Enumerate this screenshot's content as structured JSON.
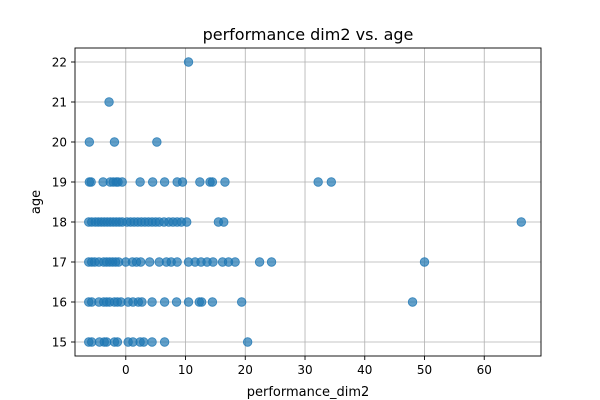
{
  "chart_data": {
    "type": "scatter",
    "title": "performance dim2 vs. age",
    "xlabel": "performance_dim2",
    "ylabel": "age",
    "xlim": [
      -8.5,
      69.5
    ],
    "ylim": [
      14.65,
      22.35
    ],
    "xticks": [
      0,
      10,
      20,
      30,
      40,
      50,
      60
    ],
    "yticks": [
      15,
      16,
      17,
      18,
      19,
      20,
      21,
      22
    ],
    "grid": true,
    "marker_color": "#1f77b4",
    "series": [
      {
        "points": [
          [
            10.5,
            22
          ],
          [
            -2.8,
            21
          ],
          [
            -6.1,
            20
          ],
          [
            -1.9,
            20
          ],
          [
            5.2,
            20
          ],
          [
            -6.1,
            19
          ],
          [
            -5.8,
            19
          ],
          [
            -3.8,
            19
          ],
          [
            -2.6,
            19
          ],
          [
            -2.1,
            19
          ],
          [
            -1.6,
            19
          ],
          [
            -1.3,
            19
          ],
          [
            -0.6,
            19
          ],
          [
            2.4,
            19
          ],
          [
            4.5,
            19
          ],
          [
            6.5,
            19
          ],
          [
            8.6,
            19
          ],
          [
            9.5,
            19
          ],
          [
            12.4,
            19
          ],
          [
            14.1,
            19
          ],
          [
            14.5,
            19
          ],
          [
            16.6,
            19
          ],
          [
            32.2,
            19
          ],
          [
            34.4,
            19
          ],
          [
            -6.2,
            18
          ],
          [
            -5.7,
            18
          ],
          [
            -5.1,
            18
          ],
          [
            -4.6,
            18
          ],
          [
            -4.1,
            18
          ],
          [
            -3.6,
            18
          ],
          [
            -3.1,
            18
          ],
          [
            -2.6,
            18
          ],
          [
            -2.1,
            18
          ],
          [
            -1.6,
            18
          ],
          [
            -1.1,
            18
          ],
          [
            -0.6,
            18
          ],
          [
            0.2,
            18
          ],
          [
            0.8,
            18
          ],
          [
            1.4,
            18
          ],
          [
            2.0,
            18
          ],
          [
            2.6,
            18
          ],
          [
            3.2,
            18
          ],
          [
            3.8,
            18
          ],
          [
            4.4,
            18
          ],
          [
            5.0,
            18
          ],
          [
            5.6,
            18
          ],
          [
            6.4,
            18
          ],
          [
            7.2,
            18
          ],
          [
            7.9,
            18
          ],
          [
            8.6,
            18
          ],
          [
            9.3,
            18
          ],
          [
            10.2,
            18
          ],
          [
            15.5,
            18
          ],
          [
            16.4,
            18
          ],
          [
            66.2,
            18
          ],
          [
            -6.2,
            17
          ],
          [
            -5.7,
            17
          ],
          [
            -5.2,
            17
          ],
          [
            -4.5,
            17
          ],
          [
            -3.7,
            17
          ],
          [
            -3.2,
            17
          ],
          [
            -2.7,
            17
          ],
          [
            -2.2,
            17
          ],
          [
            -1.7,
            17
          ],
          [
            -1.2,
            17
          ],
          [
            0.0,
            17
          ],
          [
            1.1,
            17
          ],
          [
            1.8,
            17
          ],
          [
            2.5,
            17
          ],
          [
            4.0,
            17
          ],
          [
            5.6,
            17
          ],
          [
            6.8,
            17
          ],
          [
            7.6,
            17
          ],
          [
            8.6,
            17
          ],
          [
            10.5,
            17
          ],
          [
            11.6,
            17
          ],
          [
            12.6,
            17
          ],
          [
            13.6,
            17
          ],
          [
            14.6,
            17
          ],
          [
            16.2,
            17
          ],
          [
            17.2,
            17
          ],
          [
            18.3,
            17
          ],
          [
            22.4,
            17
          ],
          [
            24.4,
            17
          ],
          [
            50.0,
            17
          ],
          [
            -6.2,
            16
          ],
          [
            -5.7,
            16
          ],
          [
            -4.5,
            16
          ],
          [
            -3.7,
            16
          ],
          [
            -3.2,
            16
          ],
          [
            -2.7,
            16
          ],
          [
            -1.9,
            16
          ],
          [
            -1.4,
            16
          ],
          [
            -0.8,
            16
          ],
          [
            0.4,
            16
          ],
          [
            1.2,
            16
          ],
          [
            2.1,
            16
          ],
          [
            2.7,
            16
          ],
          [
            4.4,
            16
          ],
          [
            6.5,
            16
          ],
          [
            8.5,
            16
          ],
          [
            10.5,
            16
          ],
          [
            12.3,
            16
          ],
          [
            12.7,
            16
          ],
          [
            14.5,
            16
          ],
          [
            19.4,
            16
          ],
          [
            48.0,
            16
          ],
          [
            -6.2,
            15
          ],
          [
            -5.7,
            15
          ],
          [
            -4.4,
            15
          ],
          [
            -3.6,
            15
          ],
          [
            -3.2,
            15
          ],
          [
            -1.9,
            15
          ],
          [
            -1.4,
            15
          ],
          [
            0.4,
            15
          ],
          [
            1.2,
            15
          ],
          [
            2.4,
            15
          ],
          [
            3.0,
            15
          ],
          [
            4.4,
            15
          ],
          [
            6.5,
            15
          ],
          [
            20.4,
            15
          ]
        ]
      }
    ]
  }
}
